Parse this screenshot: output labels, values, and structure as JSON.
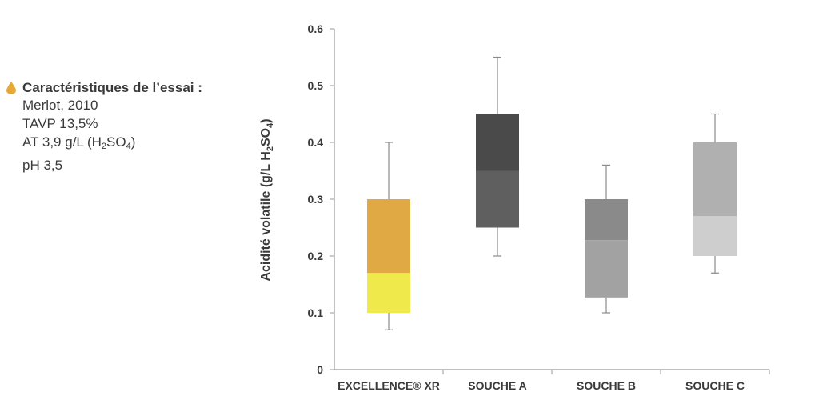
{
  "legend": {
    "title": "Caractéristiques de l’essai :",
    "lines": [
      "Merlot, 2010",
      "TAVP 13,5%"
    ],
    "at_line": {
      "text": "AT 3,9 g/L (H",
      "sub1": "2",
      "mid": "SO",
      "sub2": "4",
      "end": ")"
    },
    "ph_line": "pH 3,5",
    "icon": "drop-icon",
    "icon_color": "#E6A935"
  },
  "chart_data": {
    "type": "boxplot",
    "ylabel": {
      "main": "Acidité volatile (g/L H",
      "sub1": "2",
      "mid": "SO",
      "sub2": "4",
      "end": ")"
    },
    "ylim": [
      0,
      0.6
    ],
    "yticks": [
      "0",
      "0.1",
      "0.2",
      "0.3",
      "0.4",
      "0.5",
      "0.6"
    ],
    "ytick_values": [
      0,
      0.1,
      0.2,
      0.3,
      0.4,
      0.5,
      0.6
    ],
    "grid": false,
    "categories": [
      "EXCELLENCE® XR",
      "SOUCHE A",
      "SOUCHE B",
      "SOUCHE C"
    ],
    "boxes": [
      {
        "name": "EXCELLENCE® XR",
        "min": 0.07,
        "q1": 0.1,
        "median": 0.17,
        "q3": 0.3,
        "max": 0.4,
        "upper_color": "#E0A944",
        "lower_color": "#F0E94B"
      },
      {
        "name": "SOUCHE A",
        "min": 0.2,
        "q1": 0.25,
        "median": 0.35,
        "q3": 0.45,
        "max": 0.55,
        "upper_color": "#4A4A4A",
        "lower_color": "#5F5F5F"
      },
      {
        "name": "SOUCHE B",
        "min": 0.1,
        "q1": 0.127,
        "median": 0.228,
        "q3": 0.3,
        "max": 0.36,
        "upper_color": "#8A8A8A",
        "lower_color": "#A2A2A2"
      },
      {
        "name": "SOUCHE C",
        "min": 0.17,
        "q1": 0.2,
        "median": 0.27,
        "q3": 0.4,
        "max": 0.45,
        "upper_color": "#B0B0B0",
        "lower_color": "#CECECE"
      }
    ]
  }
}
